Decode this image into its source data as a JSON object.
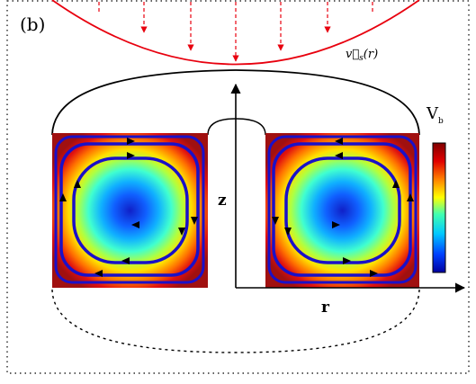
{
  "panel_label": "(b)",
  "velocity_label": "v⃗s(r)",
  "velocity_label_parts": {
    "base": "v⃗",
    "sub": "s",
    "arg": "(r)"
  },
  "axis_z_label": "z",
  "axis_r_label": "r",
  "colorbar": {
    "label_main": "V",
    "label_sub": "b",
    "gradient": [
      "#0000a0",
      "#0040ff",
      "#00c8ff",
      "#40ffb0",
      "#ffff00",
      "#ff8000",
      "#e00000",
      "#800000"
    ]
  },
  "colors": {
    "profile": "#e8000e",
    "streamline": "#1a10c8",
    "outline": "#000000",
    "cell_bg": "#b01010",
    "cell_core": "#1020c8"
  }
}
